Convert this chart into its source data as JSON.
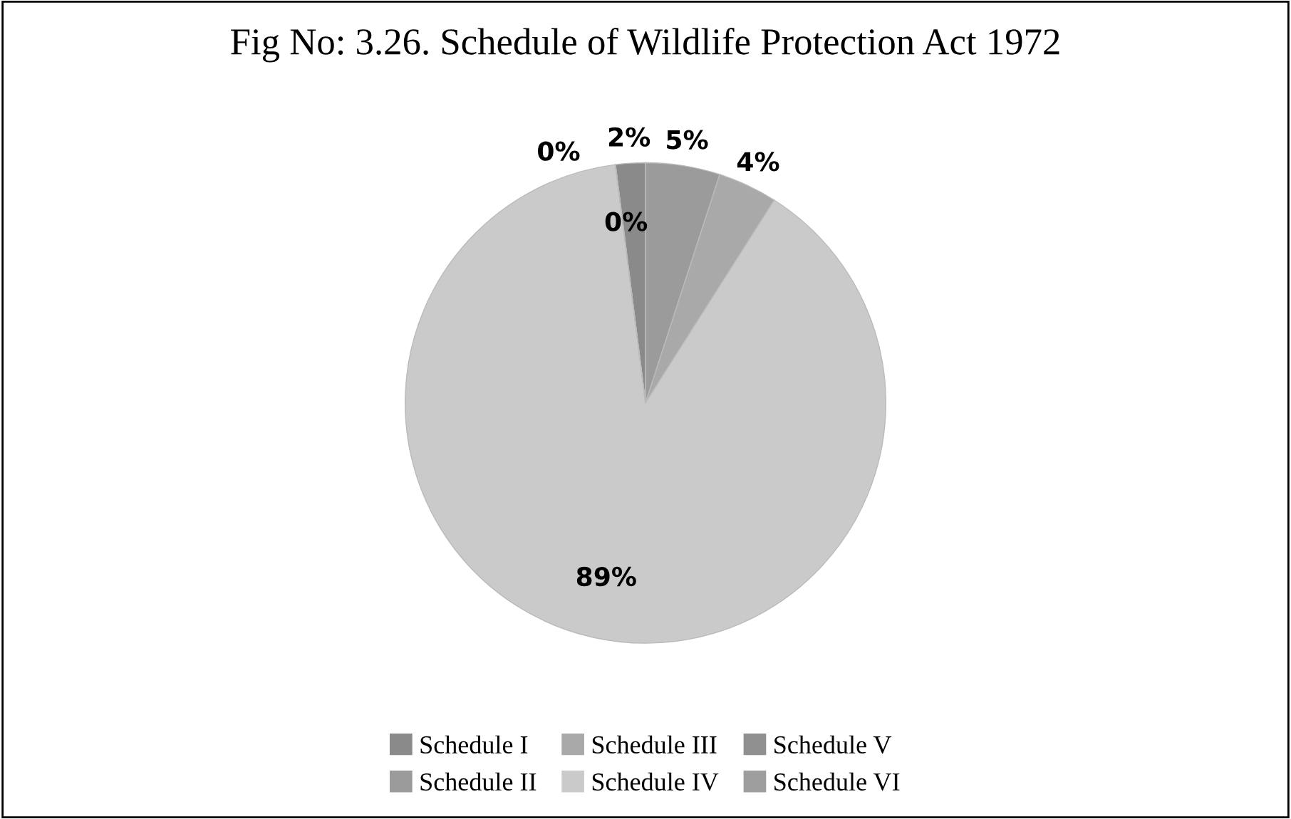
{
  "chart_data": {
    "type": "pie",
    "title": "Fig No: 3.26. Schedule of Wildlife Protection Act 1972",
    "categories": [
      "Schedule I",
      "Schedule II",
      "Schedule III",
      "Schedule IV",
      "Schedule V",
      "Schedule VI"
    ],
    "values": [
      2,
      5,
      4,
      89,
      0,
      0
    ],
    "colors": [
      "#8a8a8a",
      "#9b9b9b",
      "#a9a9a9",
      "#cacaca",
      "#909090",
      "#9e9e9e"
    ],
    "value_labels": [
      "2%",
      "5%",
      "4%",
      "89%",
      "0%",
      "0%"
    ],
    "legend": "bottom"
  }
}
